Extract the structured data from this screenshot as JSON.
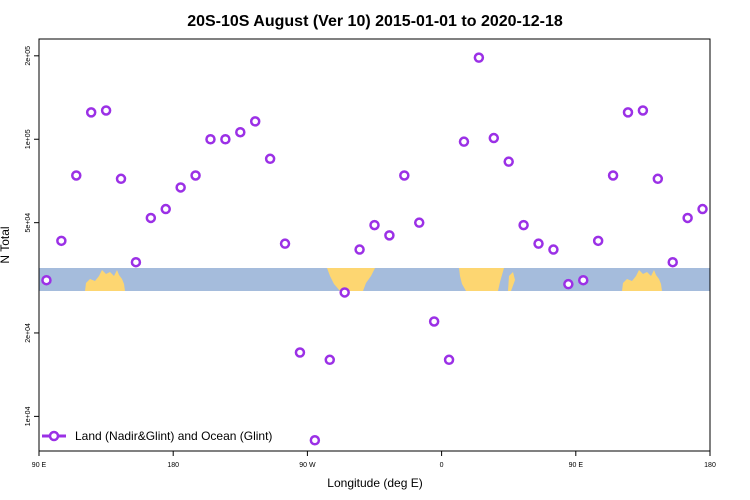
{
  "chart_data": {
    "type": "scatter",
    "title": "20S-10S August (Ver 10)   2015-01-01 to 2020-12-18",
    "xlabel": "Longitude (deg E)",
    "ylabel": "N Total",
    "x_scale": "linear",
    "y_scale": "log",
    "xlim": [
      90,
      540
    ],
    "ylim": [
      7500,
      230000
    ],
    "x_ticks": [
      {
        "value": 90,
        "label": "90 E"
      },
      {
        "value": 180,
        "label": "180"
      },
      {
        "value": 270,
        "label": "90 W"
      },
      {
        "value": 360,
        "label": "0"
      },
      {
        "value": 450,
        "label": "90 E"
      },
      {
        "value": 540,
        "label": "180"
      }
    ],
    "y_ticks": [
      {
        "value": 10000,
        "label": "1e+04"
      },
      {
        "value": 20000,
        "label": "2e+04"
      },
      {
        "value": 50000,
        "label": "5e+04"
      },
      {
        "value": 100000,
        "label": "1e+05"
      },
      {
        "value": 200000,
        "label": "2e+05"
      }
    ],
    "series": [
      {
        "name": "Land (Nadir&Glint) and Ocean (Glint)",
        "color": "#9b30e6",
        "marker": "open-circle",
        "x": [
          95,
          105,
          115,
          125,
          135,
          145,
          155,
          165,
          175,
          185,
          195,
          205,
          215,
          225,
          235,
          245,
          255,
          265,
          275,
          285,
          295,
          305,
          315,
          325,
          335,
          345,
          355,
          365,
          375,
          385,
          395,
          405,
          415,
          425,
          435,
          445,
          455,
          465,
          475,
          485,
          495,
          505,
          515,
          525,
          535
        ],
        "y": [
          31000,
          43000,
          74000,
          125000,
          127000,
          72000,
          36000,
          52000,
          56000,
          67000,
          74000,
          100000,
          100000,
          106000,
          116000,
          85000,
          42000,
          17000,
          8200,
          16000,
          28000,
          40000,
          49000,
          45000,
          74000,
          50000,
          22000,
          16000,
          98000,
          197000,
          101000,
          83000,
          49000,
          42000,
          40000,
          30000,
          31000,
          43000,
          74000,
          125000,
          127000,
          72000,
          36000,
          52000,
          56000
        ]
      }
    ],
    "legend": {
      "position": "bottom-left",
      "label": "Land (Nadir&Glint) and Ocean (Glint)"
    },
    "map_strip": {
      "ocean_color": "#a5bcdc",
      "land_color": "#fdd671"
    }
  }
}
